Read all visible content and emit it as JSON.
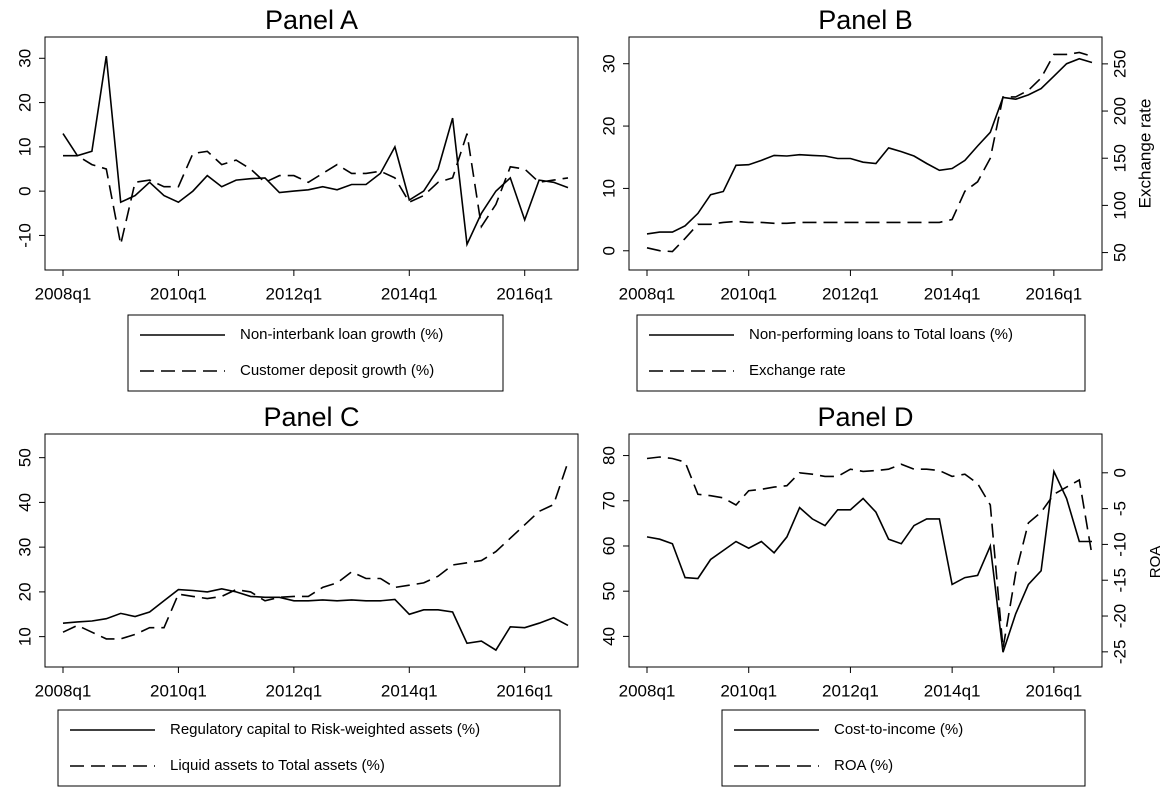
{
  "chart_data": [
    {
      "type": "line",
      "title": "Panel A",
      "categories": [
        "2008q1",
        null,
        null,
        null,
        null,
        null,
        null,
        null,
        "2010q1",
        null,
        null,
        null,
        null,
        null,
        null,
        null,
        "2012q1",
        null,
        null,
        null,
        null,
        null,
        null,
        null,
        "2014q1",
        null,
        null,
        null,
        null,
        null,
        null,
        null,
        "2016q1",
        null,
        null,
        null
      ],
      "ylim": [
        -16,
        33
      ],
      "yticks": [
        -10,
        0,
        10,
        20,
        30
      ],
      "series": [
        {
          "name": "Non-interbank loan growth (%)",
          "color": "#000000",
          "dash": false,
          "values": [
            13,
            8,
            9,
            30.5,
            -2.5,
            -1,
            2,
            -1,
            -2.5,
            0,
            3.5,
            1,
            2.5,
            2.8,
            3,
            -0.3,
            0,
            0.3,
            1,
            0.3,
            1.5,
            1.5,
            4,
            10,
            -2,
            0,
            5,
            16.5,
            -12,
            -5,
            0,
            3,
            -6.5,
            2.5,
            2,
            0.8
          ]
        },
        {
          "name": "Customer deposit growth (%)",
          "color": "#000000",
          "dash": true,
          "values": [
            8,
            8,
            6,
            5,
            -12,
            2,
            2.5,
            1,
            1,
            8.5,
            9,
            6,
            7,
            5,
            2,
            3.5,
            3.5,
            2,
            4,
            6,
            4,
            4,
            4.5,
            3,
            -2.5,
            -1,
            2,
            3,
            13,
            -8,
            -3,
            5.5,
            5,
            2,
            2.5,
            3
          ]
        }
      ]
    },
    {
      "type": "line",
      "title": "Panel B",
      "y2label": "Exchange rate",
      "categories": [
        "2008q1",
        null,
        null,
        null,
        null,
        null,
        null,
        null,
        "2010q1",
        null,
        null,
        null,
        null,
        null,
        null,
        null,
        "2012q1",
        null,
        null,
        null,
        null,
        null,
        null,
        null,
        "2014q1",
        null,
        null,
        null,
        null,
        null,
        null,
        null,
        "2016q1",
        null,
        null,
        null
      ],
      "ylim": [
        -1.8,
        33
      ],
      "yticks": [
        0,
        10,
        20,
        30
      ],
      "y2lim": [
        40,
        270
      ],
      "y2ticks": [
        50,
        100,
        150,
        200,
        250
      ],
      "series": [
        {
          "name": "Non-performing loans to Total loans (%)",
          "color": "#000000",
          "dash": false,
          "values": [
            2.7,
            3,
            3,
            4,
            6,
            9,
            9.5,
            13.7,
            13.8,
            14.5,
            15.3,
            15.2,
            15.4,
            15.3,
            15.2,
            14.8,
            14.8,
            14.2,
            14,
            16.5,
            15.9,
            15.2,
            14,
            12.9,
            13.2,
            14.5,
            16.8,
            19,
            24.6,
            24.3,
            25,
            26,
            28,
            30,
            30.8,
            30.2
          ]
        },
        {
          "name": "Exchange rate",
          "color": "#000000",
          "dash": true,
          "axis": "y2",
          "values": [
            55,
            52,
            51,
            65,
            80,
            80,
            82,
            83,
            82,
            82,
            81,
            81,
            82,
            82,
            82,
            82,
            82,
            82,
            82,
            82,
            82,
            82,
            82,
            82,
            85,
            115,
            125,
            150,
            215,
            215,
            222,
            235,
            260,
            260,
            262,
            258
          ]
        }
      ]
    },
    {
      "type": "line",
      "title": "Panel C",
      "categories": [
        "2008q1",
        null,
        null,
        null,
        null,
        null,
        null,
        null,
        "2010q1",
        null,
        null,
        null,
        null,
        null,
        null,
        null,
        "2012q1",
        null,
        null,
        null,
        null,
        null,
        null,
        null,
        "2014q1",
        null,
        null,
        null,
        null,
        null,
        null,
        null,
        "2016q1",
        null,
        null,
        null
      ],
      "ylim": [
        5,
        53.5
      ],
      "yticks": [
        10,
        20,
        30,
        40,
        50
      ],
      "series": [
        {
          "name": "Regulatory capital to Risk-weighted assets (%)",
          "color": "#000000",
          "dash": false,
          "values": [
            13,
            13.3,
            13.5,
            14,
            15.2,
            14.5,
            15.5,
            18,
            20.5,
            20.3,
            20,
            20.7,
            20,
            19,
            18.8,
            18.8,
            18,
            18,
            18.2,
            18,
            18.2,
            18,
            18,
            18.3,
            15,
            16,
            16,
            15.5,
            8.5,
            9,
            7,
            12.2,
            12,
            13,
            14.2,
            12.5
          ]
        },
        {
          "name": "Liquid assets to Total assets (%)",
          "color": "#000000",
          "dash": true,
          "values": [
            11,
            12.5,
            11,
            9.5,
            9.5,
            10.5,
            12,
            12,
            19.5,
            19,
            18.5,
            19,
            20.5,
            20,
            18,
            18.8,
            19,
            19,
            21,
            22,
            24.5,
            23,
            23,
            21,
            21.5,
            22,
            23.5,
            26,
            26.5,
            27,
            29,
            32,
            35,
            38,
            39.5,
            49
          ]
        }
      ]
    },
    {
      "type": "line",
      "title": "Panel D",
      "y2label": "ROA",
      "categories": [
        "2008q1",
        null,
        null,
        null,
        null,
        null,
        null,
        null,
        "2010q1",
        null,
        null,
        null,
        null,
        null,
        null,
        null,
        "2012q1",
        null,
        null,
        null,
        null,
        null,
        null,
        null,
        "2014q1",
        null,
        null,
        null,
        null,
        null,
        null,
        null,
        "2016q1",
        null,
        null,
        null
      ],
      "ylim": [
        35,
        83
      ],
      "yticks": [
        40,
        50,
        60,
        70,
        80
      ],
      "y2lim": [
        -26,
        4.3
      ],
      "y2ticks": [
        -25,
        -20,
        -15,
        -10,
        -5,
        0
      ],
      "series": [
        {
          "name": "Cost-to-income (%)",
          "color": "#000000",
          "dash": false,
          "values": [
            62,
            61.5,
            60.5,
            53,
            52.8,
            57,
            59,
            61,
            59.5,
            61,
            58.5,
            62,
            68.5,
            66,
            64.5,
            68,
            68,
            70.5,
            67.5,
            61.5,
            60.5,
            64.5,
            66,
            66,
            51.5,
            53,
            53.5,
            60,
            36.5,
            45,
            51.5,
            54.5,
            76.5,
            70.5,
            61,
            61
          ]
        },
        {
          "name": "ROA (%)",
          "color": "#000000",
          "dash": true,
          "axis": "y2",
          "values": [
            2,
            2.2,
            2,
            1.5,
            -3,
            -3.2,
            -3.5,
            -4.5,
            -2.5,
            -2.3,
            -2,
            -1.8,
            0,
            -0.2,
            -0.5,
            -0.5,
            0.5,
            0.2,
            0.3,
            0.5,
            1.2,
            0.5,
            0.5,
            0.3,
            -0.5,
            -0.2,
            -1.5,
            -4.5,
            -24.5,
            -14,
            -7,
            -5.5,
            -3,
            -2,
            -1,
            -11.5
          ]
        }
      ]
    }
  ]
}
